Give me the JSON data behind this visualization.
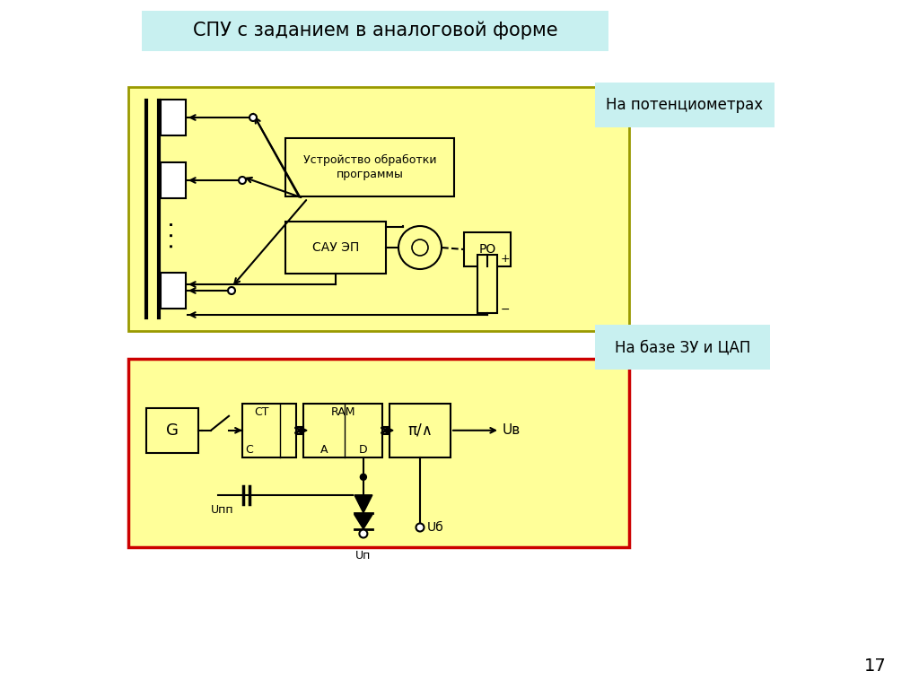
{
  "title": "СПУ с заданием в аналоговой форме",
  "title_bg": "#c8f0f0",
  "page_bg": "#ffffff",
  "diagram1_bg": "#ffff99",
  "diagram1_border": "#999900",
  "diagram2_bg": "#ffff99",
  "diagram2_border": "#cc0000",
  "label1": "На потенциометрах",
  "label1_bg": "#c8f0f0",
  "label2": "На базе ЗУ и ЦАП",
  "label2_bg": "#c8f0f0",
  "page_number": "17"
}
